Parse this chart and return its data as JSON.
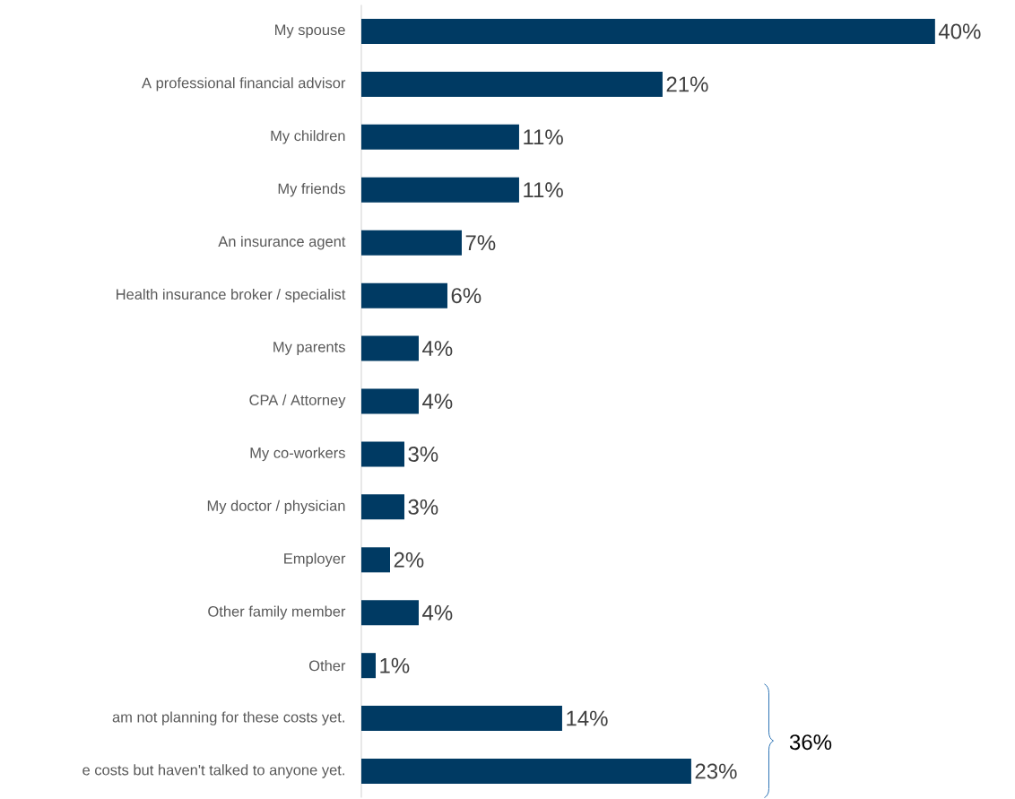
{
  "chart_data": {
    "type": "bar",
    "orientation": "horizontal",
    "categories": [
      "My spouse",
      "A professional financial advisor",
      "My children",
      "My friends",
      "An insurance agent",
      "Health insurance broker / specialist",
      "My parents",
      "CPA / Attorney",
      "My co-workers",
      "My doctor / physician",
      "Employer",
      "Other family member",
      "Other",
      "am not planning for these costs yet.",
      "e costs but haven't talked to anyone yet."
    ],
    "values": [
      40,
      21,
      11,
      11,
      7,
      6,
      4,
      4,
      3,
      3,
      2,
      4,
      1,
      14,
      23
    ],
    "value_labels": [
      "40%",
      "21%",
      "11%",
      "11%",
      "7%",
      "6%",
      "4%",
      "4%",
      "3%",
      "3%",
      "2%",
      "4%",
      "1%",
      "14%",
      "23%"
    ],
    "color": "#003a63",
    "annotations": [
      "36%"
    ]
  }
}
